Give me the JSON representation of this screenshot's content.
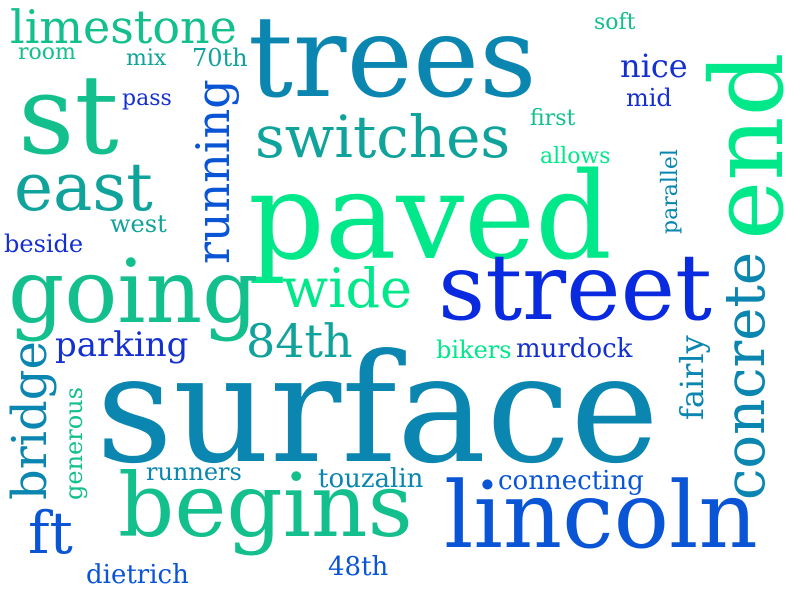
{
  "words": {
    "surface": "surface",
    "paved": "paved",
    "trees": "trees",
    "st": "st",
    "end": "end",
    "street": "street",
    "going": "going",
    "lincoln": "lincoln",
    "begins": "begins",
    "east": "east",
    "switches": "switches",
    "concrete": "concrete",
    "limestone": "limestone",
    "wide": "wide",
    "running": "running",
    "bridge": "bridge",
    "84th": "84th",
    "ft": "ft",
    "parking": "parking",
    "nice": "nice",
    "fairly": "fairly",
    "murdock": "murdock",
    "connecting": "connecting",
    "touzalin": "touzalin",
    "runners": "runners",
    "dietrich": "dietrich",
    "48th": "48th",
    "bikers": "bikers",
    "generous": "generous",
    "parallel": "parallel",
    "beside": "beside",
    "west": "west",
    "allows": "allows",
    "first": "first",
    "mid": "mid",
    "soft": "soft",
    "pass": "pass",
    "mix": "mix",
    "70th": "70th",
    "room": "room"
  },
  "palette": {
    "green": "#00e88a",
    "sea": "#13c08d",
    "teal": "#0fa39b",
    "steel": "#0a86b0",
    "blue": "#0a55d6",
    "royal": "#0a2ae0",
    "navy": "#1430d0"
  }
}
